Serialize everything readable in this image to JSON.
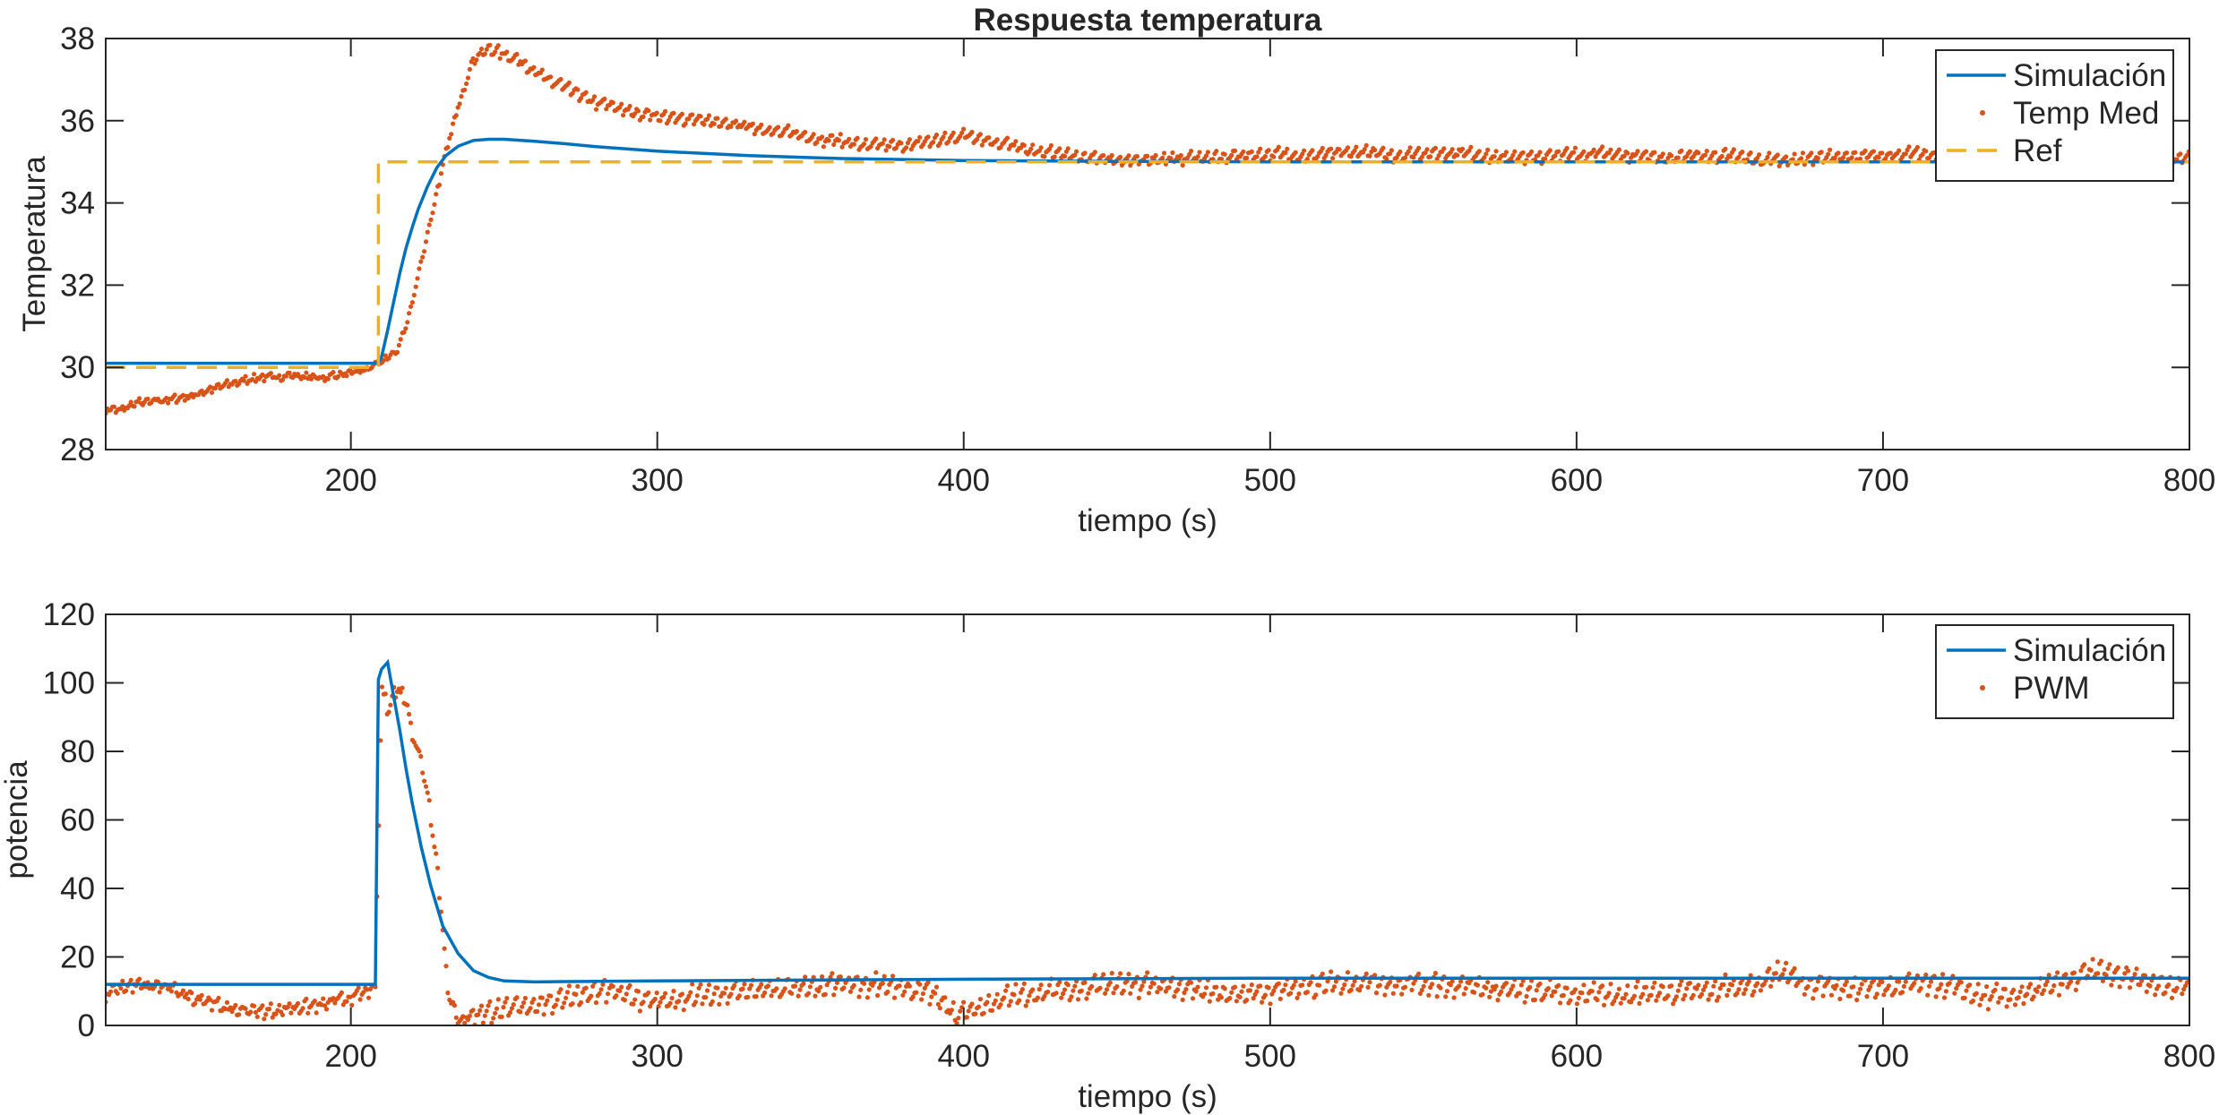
{
  "chart_data": [
    {
      "type": "line",
      "title": "Respuesta temperatura",
      "xlabel": "tiempo (s)",
      "ylabel": "Temperatura",
      "xlim": [
        120,
        800
      ],
      "ylim": [
        28,
        38
      ],
      "xticks": [
        "200",
        "300",
        "400",
        "500",
        "600",
        "700",
        "800"
      ],
      "yticks": [
        "28",
        "30",
        "32",
        "34",
        "36",
        "38"
      ],
      "grid": false,
      "legend_position": "top-right",
      "series": [
        {
          "name": "Simulación",
          "style": "line",
          "color": "#0072BD",
          "x": [
            120,
            209,
            210,
            212,
            214,
            216,
            218,
            220,
            222,
            225,
            228,
            231,
            235,
            240,
            245,
            250,
            260,
            270,
            280,
            300,
            330,
            360,
            400,
            450,
            500,
            600,
            700,
            800
          ],
          "y": [
            30.1,
            30.1,
            30.25,
            30.9,
            31.6,
            32.3,
            32.9,
            33.4,
            33.85,
            34.4,
            34.85,
            35.15,
            35.38,
            35.52,
            35.55,
            35.55,
            35.5,
            35.44,
            35.37,
            35.26,
            35.15,
            35.08,
            35.03,
            35.01,
            35.0,
            35.0,
            35.0,
            35.0
          ]
        },
        {
          "name": "Temp Med",
          "style": "dots",
          "color": "#D95319",
          "x": [
            120,
            125,
            130,
            140,
            150,
            160,
            170,
            180,
            190,
            200,
            205,
            209,
            212,
            215,
            218,
            221,
            224,
            227,
            230,
            233,
            236,
            240,
            245,
            250,
            255,
            260,
            270,
            280,
            290,
            300,
            310,
            320,
            330,
            340,
            350,
            360,
            370,
            380,
            390,
            400,
            410,
            420,
            430,
            440,
            450,
            460,
            470,
            480,
            490,
            500,
            510,
            520,
            530,
            540,
            550,
            560,
            570,
            580,
            590,
            600,
            610,
            620,
            630,
            640,
            650,
            660,
            668,
            675,
            690,
            700,
            710,
            720,
            730,
            740,
            750,
            760,
            770,
            780,
            790,
            800
          ],
          "y": [
            29.0,
            28.95,
            29.15,
            29.2,
            29.35,
            29.6,
            29.75,
            29.8,
            29.75,
            29.85,
            29.95,
            30.1,
            30.2,
            30.4,
            31.0,
            31.9,
            32.9,
            33.9,
            34.9,
            35.8,
            36.6,
            37.5,
            37.75,
            37.65,
            37.45,
            37.2,
            36.8,
            36.45,
            36.25,
            36.1,
            36.05,
            35.95,
            35.85,
            35.75,
            35.6,
            35.5,
            35.4,
            35.4,
            35.5,
            35.65,
            35.5,
            35.3,
            35.2,
            35.1,
            35.05,
            35.05,
            35.1,
            35.1,
            35.15,
            35.2,
            35.15,
            35.2,
            35.25,
            35.15,
            35.2,
            35.25,
            35.15,
            35.1,
            35.15,
            35.2,
            35.2,
            35.15,
            35.1,
            35.15,
            35.15,
            35.05,
            35.0,
            35.1,
            35.15,
            35.15,
            35.2,
            35.15,
            35.15,
            35.2,
            35.2,
            35.05,
            34.85,
            35.0,
            35.05,
            35.1
          ]
        },
        {
          "name": "Ref",
          "style": "dashed",
          "color": "#EDB120",
          "x": [
            120,
            209,
            209,
            800
          ],
          "y": [
            30,
            30,
            35,
            35
          ]
        }
      ]
    },
    {
      "type": "line",
      "title": "",
      "xlabel": "tiempo (s)",
      "ylabel": "potencia",
      "xlim": [
        120,
        800
      ],
      "ylim": [
        0,
        120
      ],
      "xticks": [
        "200",
        "300",
        "400",
        "500",
        "600",
        "700",
        "800"
      ],
      "yticks": [
        "0",
        "20",
        "40",
        "60",
        "80",
        "100",
        "120"
      ],
      "grid": false,
      "legend_position": "top-right",
      "series": [
        {
          "name": "Simulación",
          "style": "line",
          "color": "#0072BD",
          "x": [
            120,
            208,
            209,
            210,
            212,
            214,
            216,
            218,
            220,
            223,
            226,
            230,
            235,
            240,
            245,
            250,
            260,
            270,
            300,
            400,
            500,
            600,
            700,
            800
          ],
          "y": [
            12,
            12,
            101,
            104,
            106,
            96,
            86,
            75,
            65,
            52,
            41,
            29,
            21,
            16,
            14,
            13,
            12.7,
            12.8,
            13,
            13.5,
            13.8,
            13.8,
            13.8,
            13.8
          ],
          "spike": {
            "x": [
              208,
              209,
              210,
              212
            ],
            "y": [
              12,
              101,
              104,
              106
            ]
          }
        },
        {
          "name": "PWM",
          "style": "dots",
          "color": "#D95319",
          "x": [
            120,
            125,
            130,
            140,
            150,
            160,
            170,
            180,
            190,
            200,
            205,
            208,
            210,
            212,
            214,
            216,
            218,
            220,
            222,
            225,
            228,
            230,
            232,
            235,
            240,
            245,
            250,
            260,
            270,
            280,
            290,
            300,
            310,
            320,
            330,
            340,
            350,
            360,
            370,
            380,
            390,
            398,
            405,
            410,
            420,
            430,
            440,
            450,
            460,
            470,
            480,
            490,
            500,
            510,
            520,
            530,
            540,
            550,
            560,
            570,
            580,
            590,
            600,
            610,
            620,
            630,
            640,
            650,
            660,
            668,
            675,
            690,
            700,
            710,
            720,
            730,
            740,
            750,
            760,
            770,
            780,
            790,
            800
          ],
          "y": [
            9,
            11,
            12,
            11,
            8,
            5,
            4,
            5,
            6,
            8,
            10,
            11,
            99,
            92,
            97,
            98,
            95,
            86,
            80,
            68,
            48,
            28,
            8,
            2,
            3,
            4,
            5,
            6,
            8,
            10,
            9,
            7,
            8,
            9,
            10,
            11,
            11,
            12,
            12,
            11,
            9,
            3,
            5,
            7,
            9,
            10,
            11,
            12,
            12,
            11,
            10,
            9,
            10,
            11,
            12,
            13,
            12,
            12,
            12,
            11,
            10,
            10,
            9,
            9,
            9,
            10,
            10,
            11,
            12,
            16,
            12,
            11,
            11,
            12,
            12,
            9,
            8,
            10,
            13,
            16,
            14,
            12,
            11
          ]
        }
      ]
    }
  ]
}
